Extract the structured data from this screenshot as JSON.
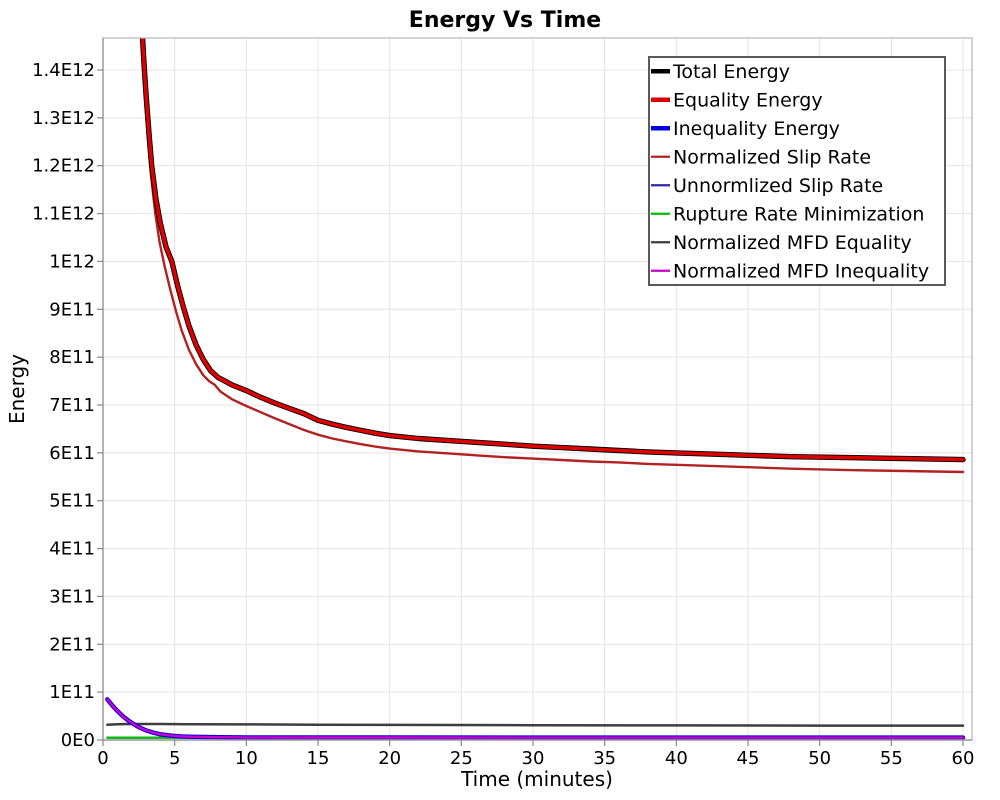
{
  "chart_data": {
    "type": "line",
    "title": "Energy Vs Time",
    "xlabel": "Time (minutes)",
    "ylabel": "Energy",
    "xlim": [
      0,
      60.6
    ],
    "ylim": [
      0,
      1467000000000.0
    ],
    "grid": true,
    "legend_position": "top-right",
    "x_ticks": [
      0,
      5,
      10,
      15,
      20,
      25,
      30,
      35,
      40,
      45,
      50,
      55,
      60
    ],
    "y_tick_labels": [
      "0E0",
      "1E11",
      "2E11",
      "3E11",
      "4E11",
      "5E11",
      "6E11",
      "7E11",
      "8E11",
      "9E11",
      "1E12",
      "1.1E12",
      "1.2E12",
      "1.3E12",
      "1.4E12"
    ],
    "y_tick_values_e11": [
      0,
      1,
      2,
      3,
      4,
      5,
      6,
      7,
      8,
      9,
      10,
      11,
      12,
      13,
      14
    ],
    "value_unit": "1E11",
    "series": [
      {
        "name": "Total Energy",
        "color": "#000000",
        "width": 5.4,
        "legend_width": 4.6,
        "points": [
          [
            2.55,
            16
          ],
          [
            2.7,
            15
          ],
          [
            2.85,
            14.2
          ],
          [
            3.0,
            13.5
          ],
          [
            3.2,
            12.7
          ],
          [
            3.4,
            12.0
          ],
          [
            3.7,
            11.3
          ],
          [
            4.0,
            10.8
          ],
          [
            4.4,
            10.3
          ],
          [
            4.8,
            10.0
          ],
          [
            5.2,
            9.5
          ],
          [
            5.6,
            9.05
          ],
          [
            6.0,
            8.65
          ],
          [
            6.5,
            8.25
          ],
          [
            7.0,
            7.95
          ],
          [
            7.5,
            7.72
          ],
          [
            8.0,
            7.58
          ],
          [
            9.0,
            7.42
          ],
          [
            10,
            7.3
          ],
          [
            11,
            7.16
          ],
          [
            12,
            7.04
          ],
          [
            13,
            6.93
          ],
          [
            14,
            6.82
          ],
          [
            15,
            6.68
          ],
          [
            16,
            6.6
          ],
          [
            17,
            6.53
          ],
          [
            18,
            6.47
          ],
          [
            19,
            6.41
          ],
          [
            20,
            6.36
          ],
          [
            22,
            6.3
          ],
          [
            24,
            6.26
          ],
          [
            26,
            6.22
          ],
          [
            28,
            6.18
          ],
          [
            30,
            6.14
          ],
          [
            32,
            6.11
          ],
          [
            34,
            6.08
          ],
          [
            36,
            6.05
          ],
          [
            38,
            6.02
          ],
          [
            40,
            6.0
          ],
          [
            44,
            5.96
          ],
          [
            48,
            5.92
          ],
          [
            52,
            5.9
          ],
          [
            56,
            5.88
          ],
          [
            60,
            5.86
          ]
        ]
      },
      {
        "name": "Equality Energy",
        "color": "#dd0000",
        "width": 3.6,
        "legend_width": 4.6,
        "points": [
          [
            2.55,
            16
          ],
          [
            2.7,
            15
          ],
          [
            2.85,
            14.2
          ],
          [
            3.0,
            13.5
          ],
          [
            3.2,
            12.7
          ],
          [
            3.4,
            12.0
          ],
          [
            3.7,
            11.3
          ],
          [
            4.0,
            10.8
          ],
          [
            4.4,
            10.3
          ],
          [
            4.8,
            10.0
          ],
          [
            5.2,
            9.5
          ],
          [
            5.6,
            9.05
          ],
          [
            6.0,
            8.65
          ],
          [
            6.5,
            8.25
          ],
          [
            7.0,
            7.95
          ],
          [
            7.5,
            7.72
          ],
          [
            8.0,
            7.58
          ],
          [
            9.0,
            7.42
          ],
          [
            10,
            7.3
          ],
          [
            11,
            7.16
          ],
          [
            12,
            7.04
          ],
          [
            13,
            6.93
          ],
          [
            14,
            6.82
          ],
          [
            15,
            6.68
          ],
          [
            16,
            6.6
          ],
          [
            17,
            6.53
          ],
          [
            18,
            6.47
          ],
          [
            19,
            6.41
          ],
          [
            20,
            6.36
          ],
          [
            22,
            6.3
          ],
          [
            24,
            6.26
          ],
          [
            26,
            6.22
          ],
          [
            28,
            6.18
          ],
          [
            30,
            6.14
          ],
          [
            32,
            6.11
          ],
          [
            34,
            6.08
          ],
          [
            36,
            6.05
          ],
          [
            38,
            6.02
          ],
          [
            40,
            6.0
          ],
          [
            44,
            5.96
          ],
          [
            48,
            5.92
          ],
          [
            52,
            5.9
          ],
          [
            56,
            5.88
          ],
          [
            60,
            5.86
          ]
        ]
      },
      {
        "name": "Inequality Energy",
        "color": "#0000dd",
        "width": 4.4,
        "legend_width": 4.6,
        "points": [
          [
            0.3,
            0.85
          ],
          [
            0.6,
            0.74
          ],
          [
            0.9,
            0.64
          ],
          [
            1.2,
            0.55
          ],
          [
            1.5,
            0.47
          ],
          [
            1.8,
            0.4
          ],
          [
            2.1,
            0.34
          ],
          [
            2.5,
            0.27
          ],
          [
            3.0,
            0.2
          ],
          [
            3.5,
            0.155
          ],
          [
            4.0,
            0.12
          ],
          [
            4.5,
            0.1
          ],
          [
            5.0,
            0.085
          ],
          [
            5.5,
            0.075
          ],
          [
            6.0,
            0.068
          ],
          [
            7.0,
            0.062
          ],
          [
            8.0,
            0.058
          ],
          [
            10,
            0.055
          ],
          [
            15,
            0.053
          ],
          [
            20,
            0.052
          ],
          [
            30,
            0.051
          ],
          [
            40,
            0.05
          ],
          [
            50,
            0.05
          ],
          [
            60,
            0.05
          ]
        ]
      },
      {
        "name": "Normalized Slip Rate",
        "color": "#b22222",
        "width": 2.4,
        "legend_width": 2.2,
        "points": [
          [
            2.5,
            16
          ],
          [
            2.65,
            15
          ],
          [
            2.8,
            14.1
          ],
          [
            2.95,
            13.3
          ],
          [
            3.15,
            12.5
          ],
          [
            3.35,
            11.8
          ],
          [
            3.65,
            11.0
          ],
          [
            3.95,
            10.4
          ],
          [
            4.3,
            9.9
          ],
          [
            4.7,
            9.4
          ],
          [
            5.1,
            8.95
          ],
          [
            5.5,
            8.55
          ],
          [
            6.0,
            8.15
          ],
          [
            6.5,
            7.85
          ],
          [
            7.0,
            7.62
          ],
          [
            7.4,
            7.5
          ],
          [
            7.8,
            7.42
          ],
          [
            8.2,
            7.28
          ],
          [
            9.0,
            7.12
          ],
          [
            10,
            6.98
          ],
          [
            11,
            6.85
          ],
          [
            12,
            6.72
          ],
          [
            13,
            6.6
          ],
          [
            14,
            6.48
          ],
          [
            15,
            6.38
          ],
          [
            16,
            6.3
          ],
          [
            17,
            6.24
          ],
          [
            18,
            6.18
          ],
          [
            19,
            6.13
          ],
          [
            20,
            6.09
          ],
          [
            22,
            6.03
          ],
          [
            24,
            5.99
          ],
          [
            26,
            5.95
          ],
          [
            28,
            5.91
          ],
          [
            30,
            5.88
          ],
          [
            32,
            5.85
          ],
          [
            34,
            5.82
          ],
          [
            36,
            5.8
          ],
          [
            38,
            5.77
          ],
          [
            40,
            5.75
          ],
          [
            44,
            5.71
          ],
          [
            48,
            5.67
          ],
          [
            52,
            5.64
          ],
          [
            56,
            5.62
          ],
          [
            60,
            5.6
          ]
        ]
      },
      {
        "name": "Unnormlized Slip Rate",
        "color": "#2a2aa8",
        "width": 1.8,
        "legend_width": 2.2,
        "points": [
          [
            0.3,
            0.045
          ],
          [
            10,
            0.045
          ],
          [
            30,
            0.045
          ],
          [
            60,
            0.045
          ]
        ]
      },
      {
        "name": "Rupture Rate Minimization",
        "color": "#00bb00",
        "width": 2.2,
        "legend_width": 2.2,
        "points": [
          [
            0.3,
            0.05
          ],
          [
            10,
            0.05
          ],
          [
            30,
            0.05
          ],
          [
            60,
            0.05
          ]
        ]
      },
      {
        "name": "Normalized MFD Equality",
        "color": "#3d3d3d",
        "width": 2.5,
        "legend_width": 2.2,
        "points": [
          [
            0.3,
            0.32
          ],
          [
            1,
            0.33
          ],
          [
            2,
            0.335
          ],
          [
            4,
            0.335
          ],
          [
            6,
            0.33
          ],
          [
            10,
            0.325
          ],
          [
            15,
            0.32
          ],
          [
            20,
            0.315
          ],
          [
            30,
            0.31
          ],
          [
            40,
            0.305
          ],
          [
            50,
            0.3
          ],
          [
            60,
            0.3
          ]
        ]
      },
      {
        "name": "Normalized MFD Inequality",
        "color": "#cc00cc",
        "width": 2.4,
        "legend_width": 2.2,
        "points": [
          [
            0.3,
            0.85
          ],
          [
            0.6,
            0.74
          ],
          [
            0.9,
            0.64
          ],
          [
            1.2,
            0.55
          ],
          [
            1.5,
            0.47
          ],
          [
            1.8,
            0.4
          ],
          [
            2.1,
            0.34
          ],
          [
            2.5,
            0.27
          ],
          [
            3.0,
            0.2
          ],
          [
            3.5,
            0.155
          ],
          [
            4.0,
            0.12
          ],
          [
            4.5,
            0.1
          ],
          [
            5.0,
            0.085
          ],
          [
            5.5,
            0.075
          ],
          [
            6.0,
            0.068
          ],
          [
            7.0,
            0.062
          ],
          [
            8.0,
            0.058
          ],
          [
            10,
            0.055
          ],
          [
            15,
            0.053
          ],
          [
            20,
            0.052
          ],
          [
            30,
            0.051
          ],
          [
            40,
            0.05
          ],
          [
            50,
            0.05
          ],
          [
            60,
            0.05
          ]
        ]
      }
    ],
    "draw_order": [
      6,
      4,
      5,
      2,
      7,
      3,
      0,
      1
    ],
    "colors": {
      "grid": "#e4e4e4",
      "frame": "#b5b5b5",
      "axis": "#999999",
      "tick": "#888888",
      "legend_border": "#5a5a5a",
      "background": "#ffffff"
    }
  }
}
